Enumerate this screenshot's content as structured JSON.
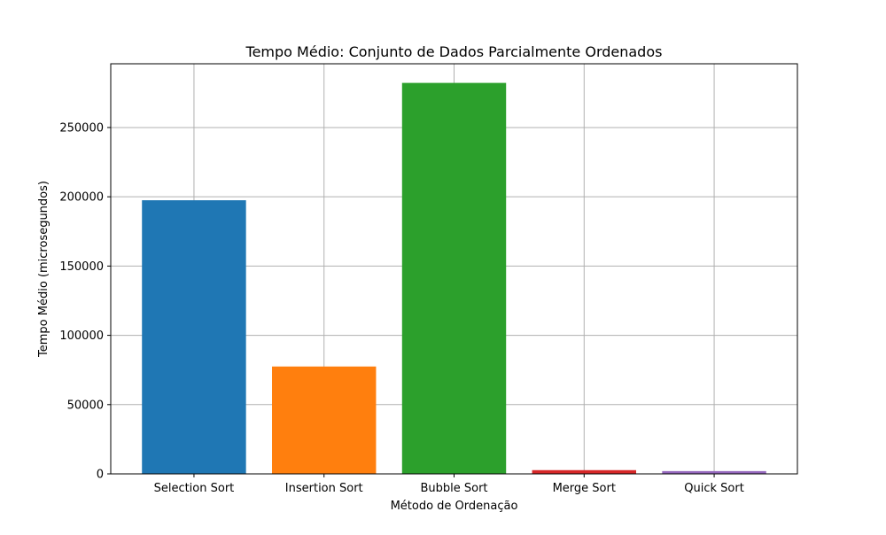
{
  "chart_data": {
    "type": "bar",
    "title": "Tempo Médio: Conjunto de Dados Parcialmente Ordenados",
    "xlabel": "Método de Ordenação",
    "ylabel": "Tempo Médio (microsegundos)",
    "categories": [
      "Selection Sort",
      "Insertion Sort",
      "Bubble Sort",
      "Merge Sort",
      "Quick Sort"
    ],
    "values": [
      197500,
      77500,
      282200,
      2700,
      2000
    ],
    "colors": [
      "#1f77b4",
      "#ff7f0e",
      "#2ca02c",
      "#d62728",
      "#9467bd"
    ],
    "ylim": [
      0,
      296000
    ],
    "yticks": [
      0,
      50000,
      100000,
      150000,
      200000,
      250000
    ],
    "ytick_labels": [
      "0",
      "50000",
      "100000",
      "150000",
      "200000",
      "250000"
    ],
    "grid": true,
    "legend": "none"
  }
}
